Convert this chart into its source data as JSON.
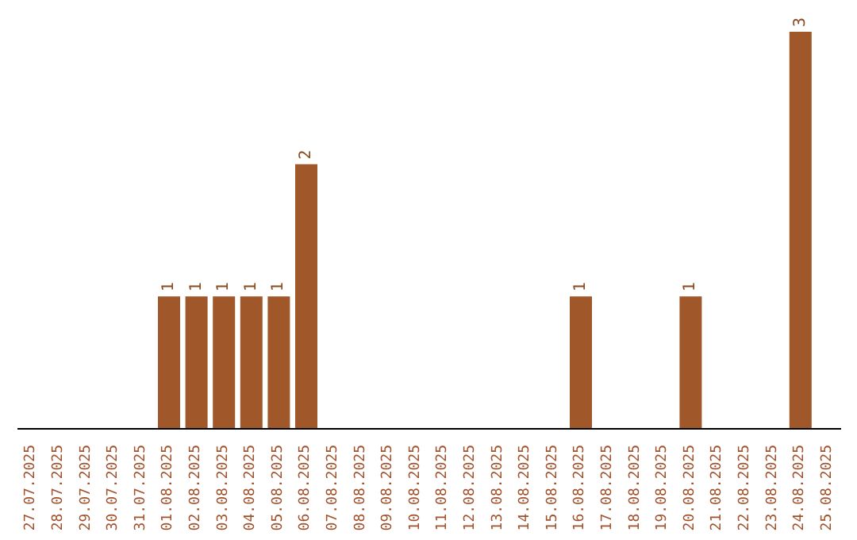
{
  "chart_data": {
    "type": "bar",
    "categories": [
      "27.07.2025",
      "28.07.2025",
      "29.07.2025",
      "30.07.2025",
      "31.07.2025",
      "01.08.2025",
      "02.08.2025",
      "03.08.2025",
      "04.08.2025",
      "05.08.2025",
      "06.08.2025",
      "07.08.2025",
      "08.08.2025",
      "09.08.2025",
      "10.08.2025",
      "11.08.2025",
      "12.08.2025",
      "13.08.2025",
      "14.08.2025",
      "15.08.2025",
      "16.08.2025",
      "17.08.2025",
      "18.08.2025",
      "19.08.2025",
      "20.08.2025",
      "21.08.2025",
      "22.08.2025",
      "23.08.2025",
      "24.08.2025",
      "25.08.2025"
    ],
    "values": [
      0,
      0,
      0,
      0,
      0,
      1,
      1,
      1,
      1,
      1,
      2,
      0,
      0,
      0,
      0,
      0,
      0,
      0,
      0,
      0,
      1,
      0,
      0,
      0,
      1,
      0,
      0,
      0,
      3,
      0
    ],
    "value_labels": [
      null,
      null,
      null,
      null,
      null,
      "1",
      "1",
      "1",
      "1",
      "1",
      "2",
      null,
      null,
      null,
      null,
      null,
      null,
      null,
      null,
      null,
      "1",
      null,
      null,
      null,
      "1",
      null,
      null,
      null,
      "3",
      null
    ],
    "color": "#a0582a"
  }
}
